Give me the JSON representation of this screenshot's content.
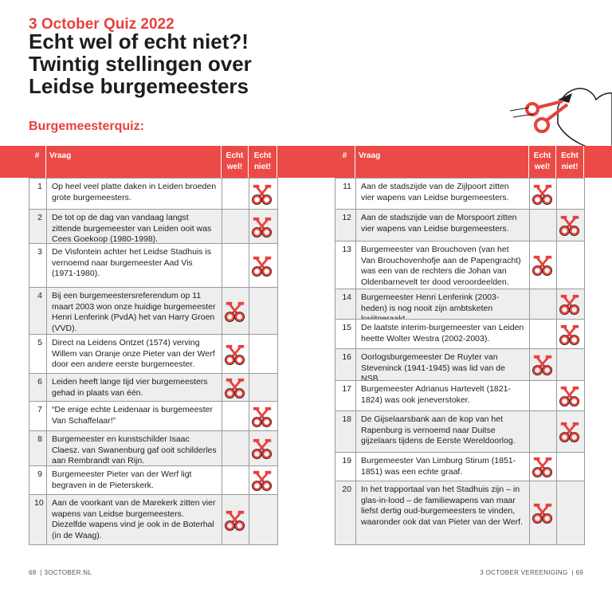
{
  "header": {
    "kicker": "3 October Quiz 2022",
    "title_lines": [
      "Echt wel of echt niet?!",
      "Twintig stellingen over",
      "Leidse burgemeesters"
    ]
  },
  "section_title": "Burgemeesterquiz:",
  "table": {
    "columns": [
      "#",
      "Vraag",
      "Echt wel!",
      "Echt niet!"
    ],
    "rows": [
      {
        "number": 1,
        "question": "Op heel veel platte daken in Leiden broeden grote burgemeesters.",
        "true_statement": false
      },
      {
        "number": 2,
        "question": "De tot op de dag van vandaag langst zittende burgemeester van Leiden ooit was Cees Goekoop (1980-1998).",
        "true_statement": false
      },
      {
        "number": 3,
        "question": "De Visfontein achter het Leidse Stadhuis is vernoemd naar burgemeester Aad Vis (1971-1980).",
        "true_statement": false
      },
      {
        "number": 4,
        "question": "Bij een burgemeestersreferendum op 11 maart 2003 won onze huidige burgemeester Henri Lenferink (PvdA) het van Harry Groen (VVD).",
        "true_statement": true
      },
      {
        "number": 5,
        "question": "Direct na Leidens Ontzet (1574) verving Willem van Oranje onze Pieter van der Werf door een andere eerste burgemeester.",
        "true_statement": true
      },
      {
        "number": 6,
        "question": "Leiden heeft lange tijd vier burgemeesters gehad in plaats van één.",
        "true_statement": true
      },
      {
        "number": 7,
        "question": "“De enige echte Leidenaar is burgemeester Van Schaffelaar!”",
        "true_statement": false
      },
      {
        "number": 8,
        "question": "Burgemeester en kunstschilder Isaac Claesz. van Swanenburg gaf ooit schilderles aan Rembrandt van Rijn.",
        "true_statement": false
      },
      {
        "number": 9,
        "question": "Burgemeester Pieter van der Werf ligt begraven in de Pieterskerk.",
        "true_statement": false
      },
      {
        "number": 10,
        "question": "Aan de voorkant van de Marekerk zitten vier wapens van Leidse burgemeesters. Diezelfde wapens vind je ook in de Boterhal (in de Waag).",
        "true_statement": true
      },
      {
        "number": 11,
        "question": "Aan de stadszijde van de Zijlpoort zitten vier wapens van Leidse burgemeesters.",
        "true_statement": true
      },
      {
        "number": 12,
        "question": "Aan de stadszijde van de Morspoort zitten vier wapens van Leidse burgemeesters.",
        "true_statement": false
      },
      {
        "number": 13,
        "question": "Burgemeester van Brouchoven (van het Van Brouchovenhofje aan de Papengracht) was een van de rechters die Johan van Oldenbarnevelt ter dood veroordeelden.",
        "true_statement": true
      },
      {
        "number": 14,
        "question": "Burgemeester Henri Lenferink (2003-heden) is nog nooit zijn ambtsketen kwijtgeraakt.",
        "true_statement": false
      },
      {
        "number": 15,
        "question": "De laatste interim-burgemeester van Leiden heette Wolter Westra (2002-2003).",
        "true_statement": false
      },
      {
        "number": 16,
        "question": "Oorlogsburgemeester De Ruyter van Steveninck (1941-1945) was lid van de NSB.",
        "true_statement": true
      },
      {
        "number": 17,
        "question": "Burgemeester Adrianus Hartevelt (1821-1824) was ook jeneverstoker.",
        "true_statement": false
      },
      {
        "number": 18,
        "question": "De Gijselaarsbank aan de kop van het Rapenburg is vernoemd naar Duitse gijzelaars tijdens de Eerste Wereldoorlog.",
        "true_statement": false
      },
      {
        "number": 19,
        "question": "Burgemeester Van Limburg Stirum (1851-1851) was een echte graaf.",
        "true_statement": true
      },
      {
        "number": 20,
        "question": "In het trapportaal van het Stadhuis zijn – in glas-in-lood – de familiewapens van maar liefst dertig oud-burgemeesters te vinden, waaronder ook dat van Pieter van der Werf.",
        "true_statement": true
      }
    ]
  },
  "footer": {
    "left_page": "68",
    "left_site": "3OCTOBER.NL",
    "right_org": "3 OCTOBER VEREENIGING",
    "right_page": "69"
  }
}
